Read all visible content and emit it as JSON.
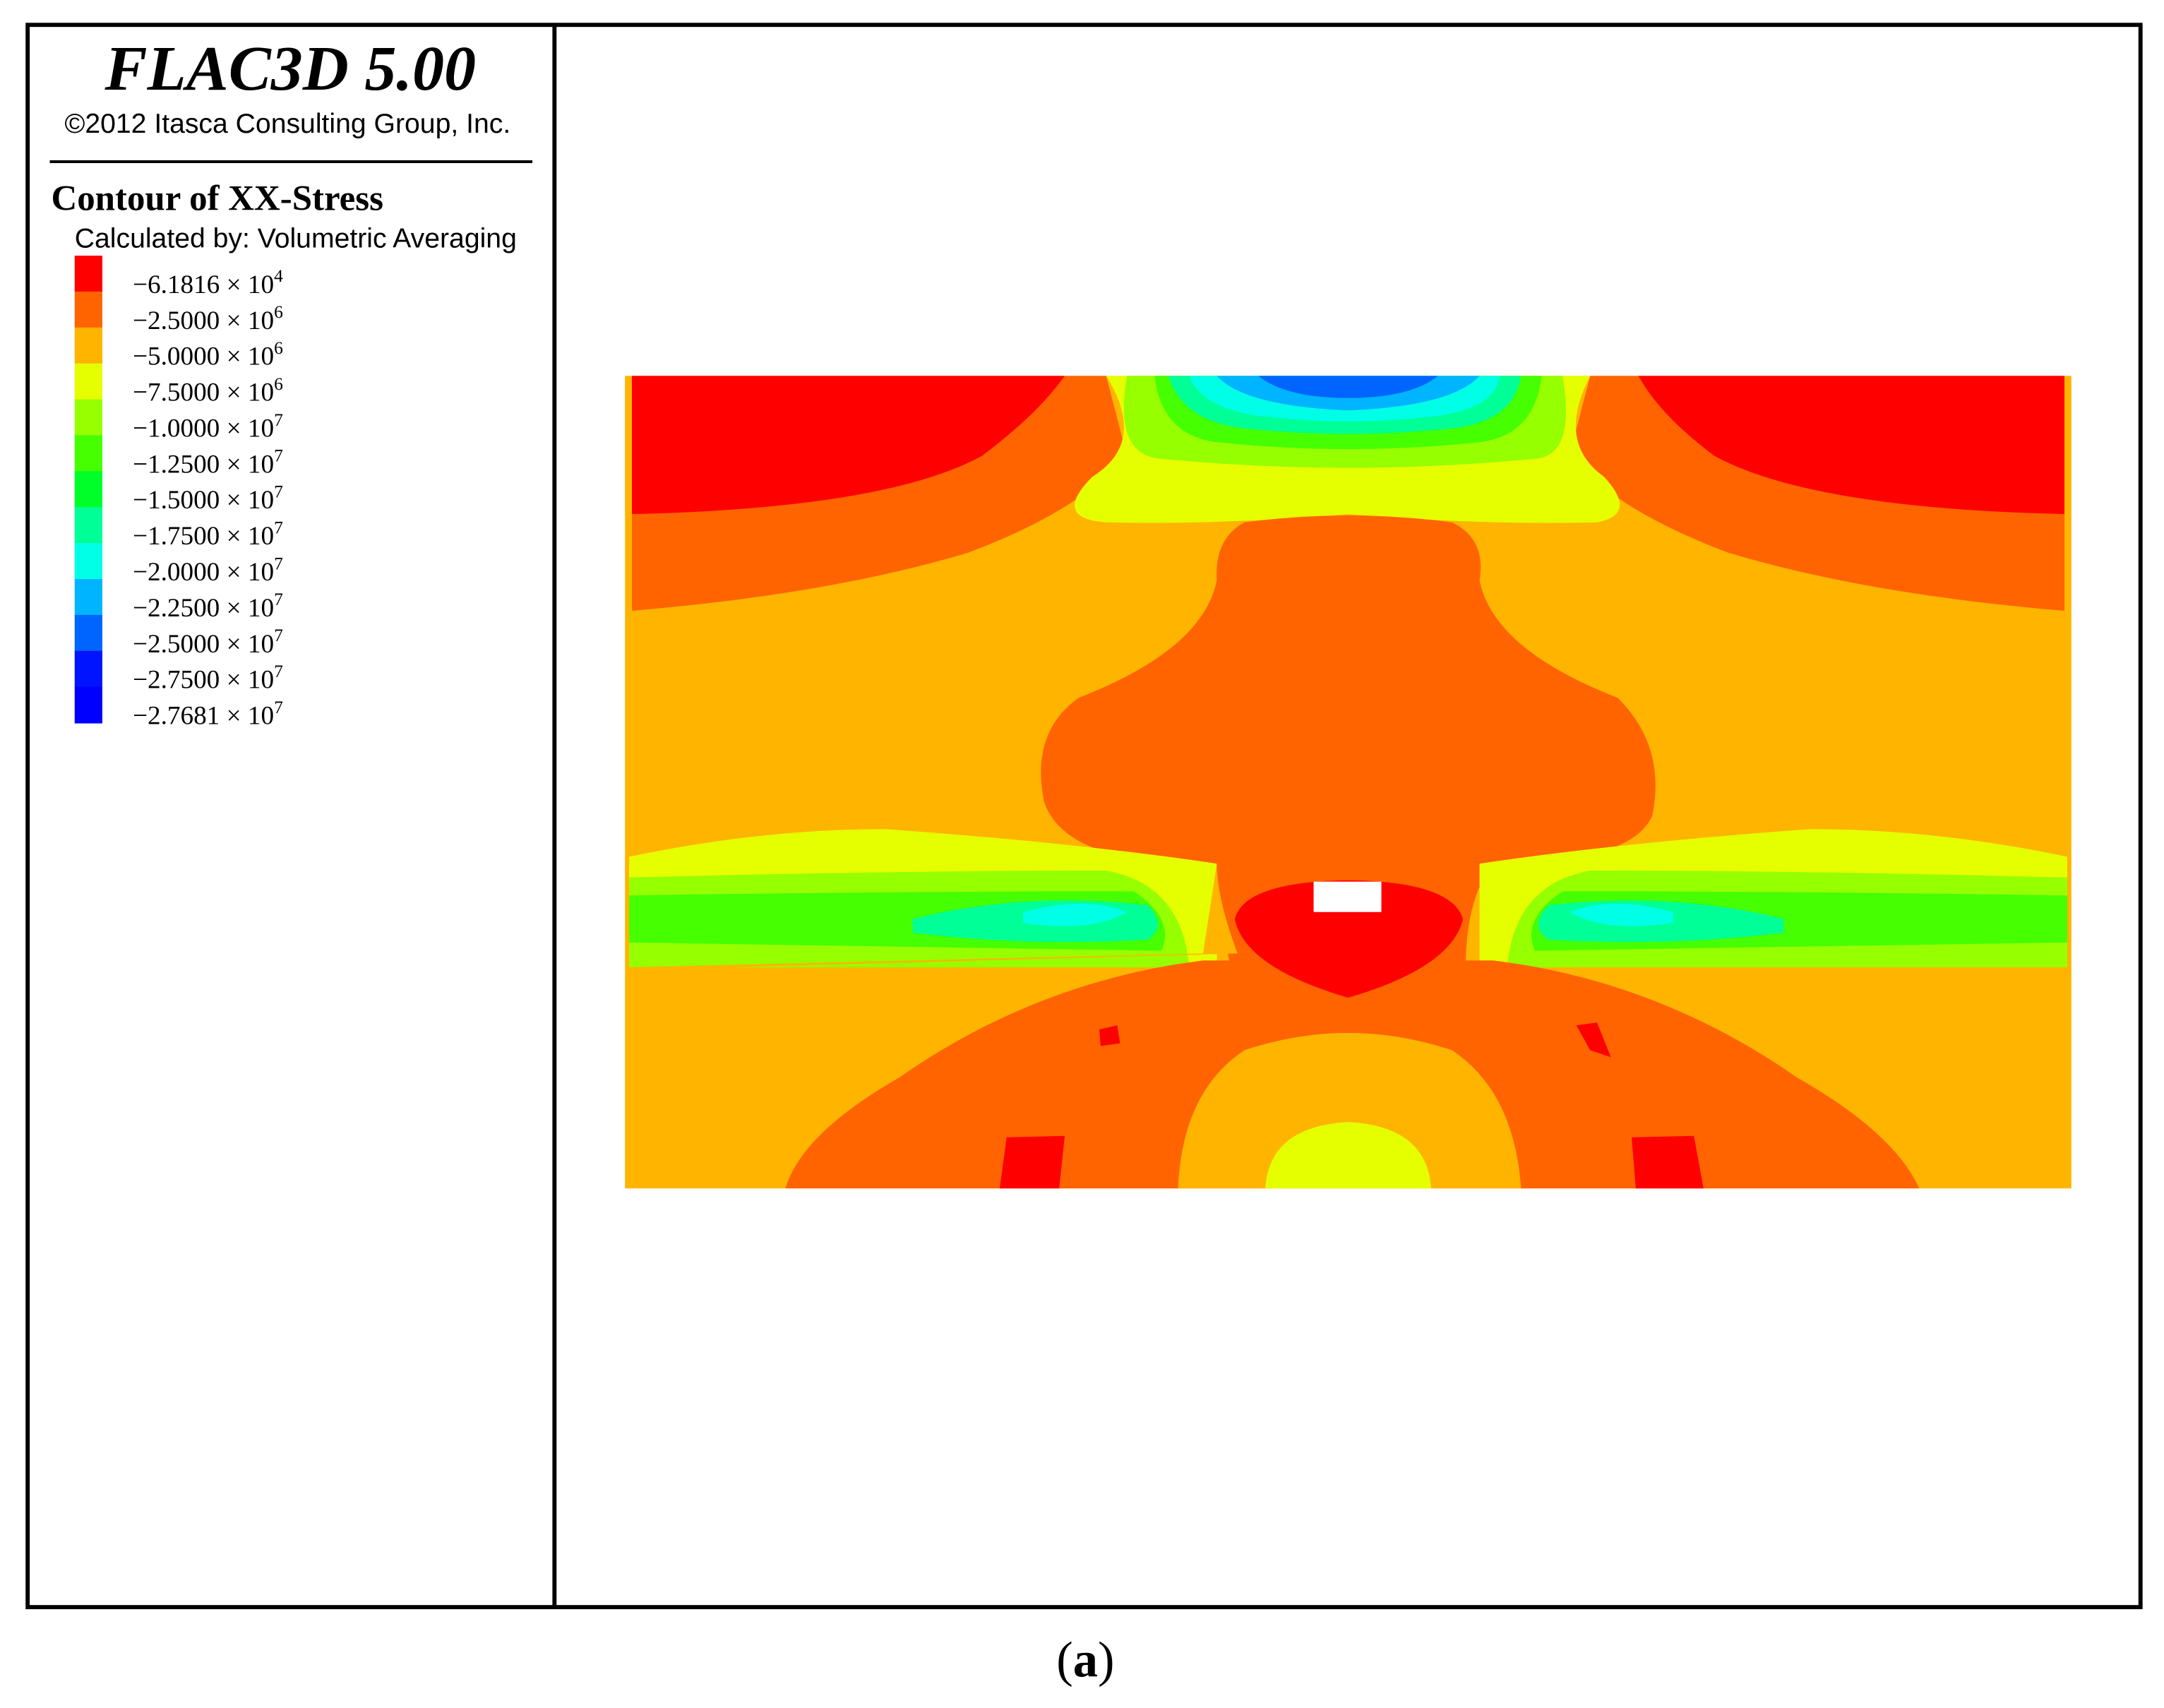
{
  "header": {
    "title": "FLAC3D 5.00",
    "copyright": "©2012 Itasca Consulting Group, Inc."
  },
  "legend": {
    "title": "Contour of XX-Stress",
    "subtitle": "Calculated by: Volumetric Averaging",
    "items": [
      {
        "color": "#ff0000",
        "text": "−6.1816 × 10",
        "exponent": "4"
      },
      {
        "color": "#ff6400",
        "text": "−2.5000 × 10",
        "exponent": "6"
      },
      {
        "color": "#ffb400",
        "text": "−5.0000 × 10",
        "exponent": "6"
      },
      {
        "color": "#e6ff00",
        "text": "−7.5000 × 10",
        "exponent": "6"
      },
      {
        "color": "#96ff00",
        "text": "−1.0000 × 10",
        "exponent": "7"
      },
      {
        "color": "#46ff00",
        "text": "−1.2500 × 10",
        "exponent": "7"
      },
      {
        "color": "#00ff28",
        "text": "−1.5000 × 10",
        "exponent": "7"
      },
      {
        "color": "#00ff96",
        "text": "−1.7500 × 10",
        "exponent": "7"
      },
      {
        "color": "#00ffe6",
        "text": "−2.0000 × 10",
        "exponent": "7"
      },
      {
        "color": "#00b4ff",
        "text": "−2.2500 × 10",
        "exponent": "7"
      },
      {
        "color": "#0064ff",
        "text": "−2.5000 × 10",
        "exponent": "7"
      },
      {
        "color": "#0014ff",
        "text": "−2.7500 × 10",
        "exponent": "7"
      },
      {
        "color": "#0000ff",
        "text": "−2.7681 × 10",
        "exponent": "7"
      }
    ]
  },
  "caption": {
    "open": "(",
    "letter": "a",
    "close": ")"
  }
}
